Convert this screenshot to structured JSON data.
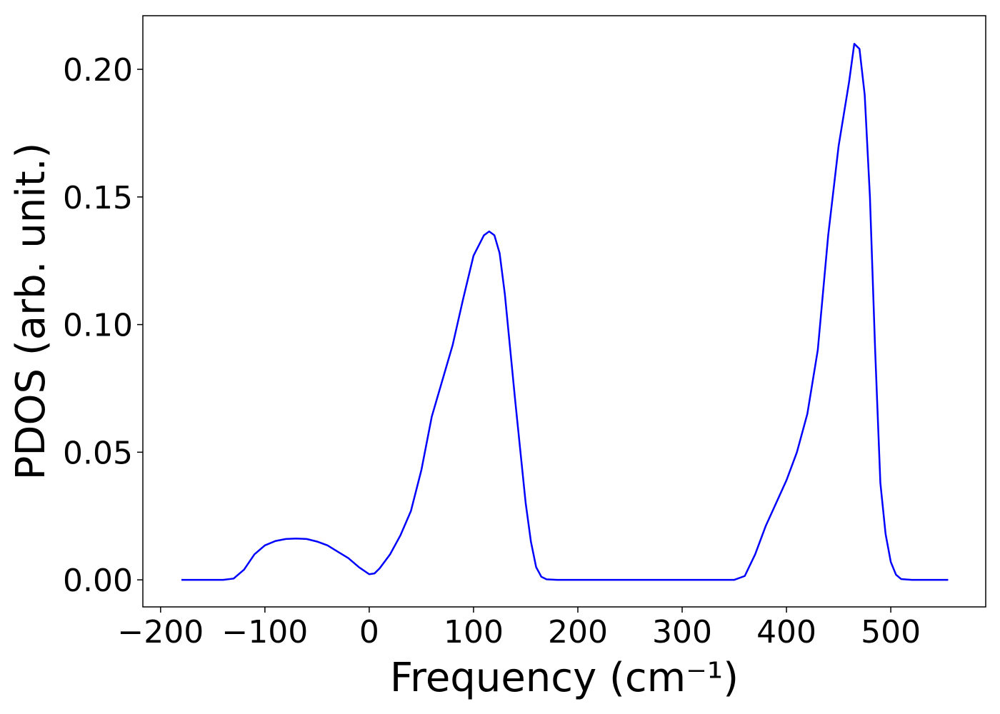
{
  "chart_data": {
    "type": "line",
    "x_label": "Frequency (cm⁻¹)",
    "y_label": "PDOS (arb. unit.)",
    "xlim": [
      -217,
      591
    ],
    "ylim": [
      -0.0106,
      0.221
    ],
    "xticks": [
      {
        "value": -200,
        "label": "−200"
      },
      {
        "value": -100,
        "label": "−100"
      },
      0,
      100,
      200,
      300,
      400,
      500
    ],
    "yticks": [
      {
        "value": 0,
        "label": "0.00"
      },
      0.05,
      {
        "value": 0.1,
        "label": "0.10"
      },
      0.15,
      {
        "value": 0.2,
        "label": "0.20"
      }
    ],
    "x": [
      -180,
      -140,
      -130,
      -120,
      -110,
      -100,
      -90,
      -80,
      -70,
      -60,
      -50,
      -40,
      -30,
      -20,
      -10,
      0,
      5,
      10,
      20,
      30,
      40,
      50,
      60,
      70,
      80,
      90,
      100,
      110,
      115,
      120,
      125,
      130,
      140,
      150,
      155,
      160,
      165,
      170,
      180,
      350,
      360,
      370,
      380,
      390,
      400,
      410,
      420,
      430,
      440,
      450,
      460,
      465,
      470,
      475,
      480,
      485,
      490,
      495,
      500,
      505,
      510,
      520,
      555
    ],
    "series": [
      {
        "color": "#0000ff",
        "values": [
          0,
          0,
          0.0005,
          0.004,
          0.01,
          0.0135,
          0.0152,
          0.016,
          0.0162,
          0.016,
          0.015,
          0.0135,
          0.011,
          0.0085,
          0.005,
          0.0022,
          0.0025,
          0.0045,
          0.01,
          0.0175,
          0.027,
          0.043,
          0.064,
          0.078,
          0.092,
          0.11,
          0.127,
          0.135,
          0.1365,
          0.135,
          0.128,
          0.112,
          0.07,
          0.03,
          0.015,
          0.005,
          0.0012,
          0.0002,
          0,
          0,
          0.0015,
          0.01,
          0.021,
          0.03,
          0.039,
          0.05,
          0.065,
          0.09,
          0.135,
          0.17,
          0.195,
          0.21,
          0.208,
          0.19,
          0.15,
          0.09,
          0.038,
          0.018,
          0.007,
          0.002,
          0.0003,
          0,
          0
        ]
      }
    ]
  }
}
